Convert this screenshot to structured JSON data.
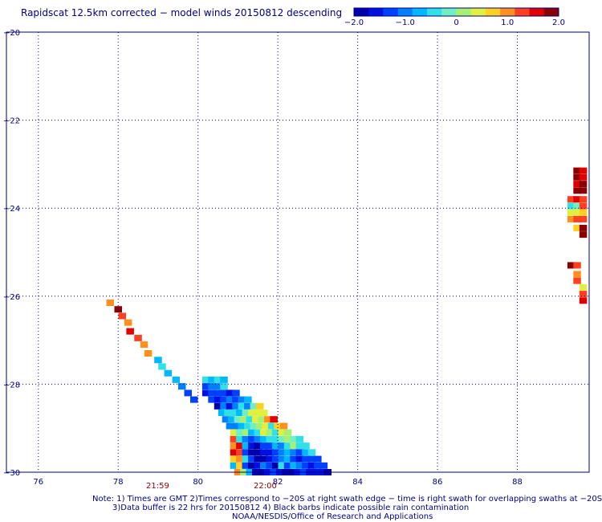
{
  "title": "Rapidscat 12.5km corrected − model winds 20150812 descending",
  "colorbar": {
    "ticks": [
      "−2.0",
      "−1.0",
      "0",
      "1.0",
      "2.0"
    ],
    "tick_values": [
      -2.0,
      -1.0,
      0,
      1.0,
      2.0
    ],
    "range": [
      -2.0,
      2.0
    ],
    "colors": [
      "#0000aa",
      "#0010e0",
      "#0040ff",
      "#0080ff",
      "#00b8ff",
      "#30e0e8",
      "#70f0c0",
      "#a8f070",
      "#e0f040",
      "#ffd020",
      "#ff9020",
      "#ff4020",
      "#e00000",
      "#8b0000"
    ]
  },
  "time_labels": {
    "t1": "21:59",
    "t2": "22:00"
  },
  "notes": {
    "line1": "Note: 1) Times are GMT 2)Times correspond to −20S at right swath edge − time is right swath for overlapping swaths at −20S",
    "line2": "3)Data buffer is 22 hrs for 20150812 4) Black barbs indicate possible rain contamination",
    "line3": "NOAA/NESDIS/Office of Research and Applications"
  },
  "chart_data": {
    "type": "heatmap",
    "title": "Rapidscat 12.5km corrected − model winds 20150812 descending",
    "xlim": [
      75.2,
      89.8
    ],
    "ylim": [
      -30,
      -20
    ],
    "x_ticks": [
      "76",
      "78",
      "80",
      "82",
      "84",
      "86",
      "88"
    ],
    "x_tick_values": [
      76,
      78,
      80,
      82,
      84,
      86,
      88
    ],
    "y_ticks": [
      "−20",
      "−22",
      "−24",
      "−26",
      "−28",
      "−30"
    ],
    "y_tick_values": [
      -20,
      -22,
      -24,
      -26,
      -28,
      -30
    ],
    "grid": true,
    "cell_size_deg": 0.125,
    "value_range": [
      -2.0,
      2.0
    ],
    "cells": [
      [
        77.8,
        -26.15,
        1.1
      ],
      [
        78.0,
        -26.3,
        1.8
      ],
      [
        78.1,
        -26.45,
        1.2
      ],
      [
        78.25,
        -26.6,
        1.0
      ],
      [
        78.3,
        -26.8,
        1.7
      ],
      [
        78.5,
        -26.95,
        1.4
      ],
      [
        78.65,
        -27.1,
        1.1
      ],
      [
        78.75,
        -27.3,
        0.9
      ],
      [
        79.0,
        -27.45,
        -0.6
      ],
      [
        79.1,
        -27.6,
        -0.5
      ],
      [
        79.25,
        -27.75,
        -0.8
      ],
      [
        79.45,
        -27.9,
        -0.6
      ],
      [
        79.6,
        -28.05,
        -1.0
      ],
      [
        79.75,
        -28.2,
        -1.2
      ],
      [
        79.9,
        -28.35,
        -1.4
      ],
      [
        80.2,
        -27.9,
        -0.4
      ],
      [
        80.35,
        -27.9,
        -0.6
      ],
      [
        80.5,
        -27.9,
        -0.3
      ],
      [
        80.65,
        -27.9,
        -0.8
      ],
      [
        80.2,
        -28.05,
        -1.3
      ],
      [
        80.35,
        -28.05,
        -0.9
      ],
      [
        80.5,
        -28.05,
        -1.1
      ],
      [
        80.65,
        -28.05,
        -0.5
      ],
      [
        80.2,
        -28.2,
        -1.5
      ],
      [
        80.35,
        -28.2,
        -1.3
      ],
      [
        80.5,
        -28.2,
        -1.4
      ],
      [
        80.65,
        -28.2,
        -1.2
      ],
      [
        80.8,
        -28.2,
        -1.5
      ],
      [
        80.95,
        -28.2,
        -1.4
      ],
      [
        80.35,
        -28.35,
        -1.4
      ],
      [
        80.5,
        -28.35,
        -1.7
      ],
      [
        80.65,
        -28.35,
        -1.2
      ],
      [
        80.8,
        -28.35,
        -0.9
      ],
      [
        80.95,
        -28.35,
        -1.3
      ],
      [
        81.1,
        -28.35,
        -1.1
      ],
      [
        81.25,
        -28.35,
        -0.7
      ],
      [
        80.5,
        -28.5,
        -1.9
      ],
      [
        80.65,
        -28.5,
        -1.1
      ],
      [
        80.8,
        -28.5,
        -1.6
      ],
      [
        80.95,
        -28.5,
        -1.0
      ],
      [
        81.1,
        -28.5,
        -0.4
      ],
      [
        81.25,
        -28.5,
        -0.9
      ],
      [
        81.4,
        -28.5,
        -0.2
      ],
      [
        81.55,
        -28.5,
        0.6
      ],
      [
        80.6,
        -28.65,
        -0.7
      ],
      [
        80.75,
        -28.65,
        -0.5
      ],
      [
        80.9,
        -28.65,
        -0.3
      ],
      [
        81.05,
        -28.65,
        -0.6
      ],
      [
        81.2,
        -28.65,
        -0.2
      ],
      [
        81.35,
        -28.65,
        0.3
      ],
      [
        81.5,
        -28.65,
        0.5
      ],
      [
        81.65,
        -28.65,
        0.4
      ],
      [
        80.7,
        -28.8,
        -1.0
      ],
      [
        80.85,
        -28.8,
        -0.7
      ],
      [
        81.0,
        -28.8,
        -0.2
      ],
      [
        81.15,
        -28.8,
        0.1
      ],
      [
        81.3,
        -28.8,
        -0.4
      ],
      [
        81.45,
        -28.8,
        0.3
      ],
      [
        81.6,
        -28.8,
        0.2
      ],
      [
        81.75,
        -28.8,
        1.1
      ],
      [
        81.9,
        -28.8,
        1.5
      ],
      [
        80.8,
        -28.95,
        -1.1
      ],
      [
        80.95,
        -28.95,
        -0.9
      ],
      [
        81.1,
        -28.95,
        -0.6
      ],
      [
        81.25,
        -28.95,
        -0.5
      ],
      [
        81.4,
        -28.95,
        -0.2
      ],
      [
        81.55,
        -28.95,
        0.2
      ],
      [
        81.7,
        -28.95,
        0.3
      ],
      [
        81.85,
        -28.95,
        -0.3
      ],
      [
        82.0,
        -28.95,
        0.6
      ],
      [
        82.15,
        -28.95,
        1.0
      ],
      [
        80.9,
        -29.1,
        0.3
      ],
      [
        81.05,
        -29.1,
        -0.2
      ],
      [
        81.2,
        -29.1,
        0.1
      ],
      [
        81.35,
        -29.1,
        -0.6
      ],
      [
        81.5,
        -29.1,
        -0.3
      ],
      [
        81.65,
        -29.1,
        0.4
      ],
      [
        81.8,
        -29.1,
        0.2
      ],
      [
        81.95,
        -29.1,
        -0.4
      ],
      [
        82.1,
        -29.1,
        0.5
      ],
      [
        82.25,
        -29.1,
        0.1
      ],
      [
        80.9,
        -29.25,
        1.4
      ],
      [
        81.05,
        -29.25,
        -0.4
      ],
      [
        81.2,
        -29.25,
        -0.9
      ],
      [
        81.35,
        -29.25,
        -1.2
      ],
      [
        81.5,
        -29.25,
        -1.0
      ],
      [
        81.65,
        -29.25,
        -0.6
      ],
      [
        81.8,
        -29.25,
        -0.3
      ],
      [
        81.95,
        -29.25,
        -0.5
      ],
      [
        82.1,
        -29.25,
        -0.2
      ],
      [
        82.25,
        -29.25,
        0.2
      ],
      [
        82.4,
        -29.25,
        -0.1
      ],
      [
        82.55,
        -29.25,
        -0.4
      ],
      [
        80.9,
        -29.4,
        1.0
      ],
      [
        81.05,
        -29.4,
        1.6
      ],
      [
        81.2,
        -29.4,
        -0.8
      ],
      [
        81.35,
        -29.4,
        -1.6
      ],
      [
        81.5,
        -29.4,
        -1.9
      ],
      [
        81.65,
        -29.4,
        -1.4
      ],
      [
        81.8,
        -29.4,
        -1.2
      ],
      [
        81.95,
        -29.4,
        -0.7
      ],
      [
        82.1,
        -29.4,
        -0.9
      ],
      [
        82.25,
        -29.4,
        -0.4
      ],
      [
        82.4,
        -29.4,
        0.2
      ],
      [
        82.55,
        -29.4,
        -0.3
      ],
      [
        82.7,
        -29.4,
        -0.5
      ],
      [
        80.9,
        -29.55,
        1.7
      ],
      [
        81.05,
        -29.55,
        1.2
      ],
      [
        81.2,
        -29.55,
        -1.3
      ],
      [
        81.35,
        -29.55,
        -1.8
      ],
      [
        81.5,
        -29.55,
        -2.0
      ],
      [
        81.65,
        -29.55,
        -1.5
      ],
      [
        81.8,
        -29.55,
        -1.7
      ],
      [
        81.95,
        -29.55,
        -1.3
      ],
      [
        82.1,
        -29.55,
        -1.1
      ],
      [
        82.25,
        -29.55,
        -0.8
      ],
      [
        82.4,
        -29.55,
        -1.0
      ],
      [
        82.55,
        -29.55,
        -1.4
      ],
      [
        82.7,
        -29.55,
        -0.6
      ],
      [
        82.85,
        -29.55,
        -0.3
      ],
      [
        80.9,
        -29.7,
        0.8
      ],
      [
        81.05,
        -29.7,
        1.0
      ],
      [
        81.2,
        -29.7,
        -0.5
      ],
      [
        81.35,
        -29.7,
        -1.4
      ],
      [
        81.5,
        -29.7,
        -1.9
      ],
      [
        81.65,
        -29.7,
        -2.0
      ],
      [
        81.8,
        -29.7,
        -1.6
      ],
      [
        81.95,
        -29.7,
        -1.2
      ],
      [
        82.1,
        -29.7,
        -1.0
      ],
      [
        82.25,
        -29.7,
        -0.6
      ],
      [
        82.4,
        -29.7,
        -1.3
      ],
      [
        82.55,
        -29.7,
        -1.5
      ],
      [
        82.7,
        -29.7,
        -1.2
      ],
      [
        82.85,
        -29.7,
        -1.4
      ],
      [
        83.0,
        -29.7,
        -1.3
      ],
      [
        80.9,
        -29.85,
        -0.6
      ],
      [
        81.05,
        -29.85,
        0.6
      ],
      [
        81.2,
        -29.85,
        -1.2
      ],
      [
        81.35,
        -29.85,
        -1.9
      ],
      [
        81.5,
        -29.85,
        -1.7
      ],
      [
        81.65,
        -29.85,
        -1.0
      ],
      [
        81.8,
        -29.85,
        -1.4
      ],
      [
        81.95,
        -29.85,
        -1.9
      ],
      [
        82.1,
        -29.85,
        -0.4
      ],
      [
        82.25,
        -29.85,
        -1.2
      ],
      [
        82.4,
        -29.85,
        -0.8
      ],
      [
        82.55,
        -29.85,
        -1.0
      ],
      [
        82.7,
        -29.85,
        -1.3
      ],
      [
        82.85,
        -29.85,
        -1.6
      ],
      [
        83.0,
        -29.85,
        -1.4
      ],
      [
        83.15,
        -29.85,
        -1.2
      ],
      [
        81.0,
        -30.0,
        0.9
      ],
      [
        81.15,
        -30.0,
        0.1
      ],
      [
        81.3,
        -30.0,
        -0.6
      ],
      [
        81.45,
        -30.0,
        -2.0
      ],
      [
        81.6,
        -30.0,
        -1.8
      ],
      [
        81.75,
        -30.0,
        -1.6
      ],
      [
        81.9,
        -30.0,
        -1.3
      ],
      [
        82.05,
        -30.0,
        -1.5
      ],
      [
        82.2,
        -30.0,
        -2.0
      ],
      [
        82.35,
        -30.0,
        -1.8
      ],
      [
        82.5,
        -30.0,
        -1.7
      ],
      [
        82.65,
        -30.0,
        -1.4
      ],
      [
        82.8,
        -30.0,
        -1.5
      ],
      [
        82.95,
        -30.0,
        -1.6
      ],
      [
        83.1,
        -30.0,
        -1.7
      ],
      [
        83.25,
        -30.0,
        -1.9
      ],
      [
        89.5,
        -23.15,
        2.0
      ],
      [
        89.65,
        -23.15,
        1.5
      ],
      [
        89.5,
        -23.3,
        1.8
      ],
      [
        89.65,
        -23.3,
        1.7
      ],
      [
        89.5,
        -23.45,
        1.6
      ],
      [
        89.65,
        -23.45,
        2.0
      ],
      [
        89.5,
        -23.6,
        1.9
      ],
      [
        89.65,
        -23.6,
        1.8
      ],
      [
        89.35,
        -23.8,
        1.3
      ],
      [
        89.5,
        -23.8,
        1.7
      ],
      [
        89.65,
        -23.8,
        1.4
      ],
      [
        89.35,
        -23.95,
        -0.3
      ],
      [
        89.5,
        -23.95,
        -0.2
      ],
      [
        89.65,
        -23.95,
        1.2
      ],
      [
        89.35,
        -24.1,
        0.3
      ],
      [
        89.5,
        -24.1,
        0.5
      ],
      [
        89.65,
        -24.1,
        0.6
      ],
      [
        89.35,
        -24.25,
        1.0
      ],
      [
        89.5,
        -24.25,
        1.3
      ],
      [
        89.65,
        -24.25,
        1.4
      ],
      [
        89.5,
        -24.45,
        0.6
      ],
      [
        89.65,
        -24.45,
        1.9
      ],
      [
        89.65,
        -24.6,
        2.0
      ],
      [
        89.35,
        -25.3,
        2.0
      ],
      [
        89.5,
        -25.3,
        1.4
      ],
      [
        89.5,
        -25.5,
        0.9
      ],
      [
        89.5,
        -25.65,
        1.2
      ],
      [
        89.65,
        -25.8,
        0.4
      ],
      [
        89.65,
        -25.95,
        1.2
      ],
      [
        89.65,
        -26.1,
        1.6
      ]
    ]
  }
}
